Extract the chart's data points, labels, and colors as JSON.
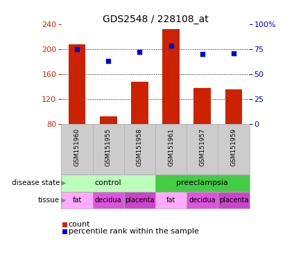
{
  "title": "GDS2548 / 228108_at",
  "samples": [
    "GSM151960",
    "GSM151955",
    "GSM151958",
    "GSM151961",
    "GSM151957",
    "GSM151959"
  ],
  "counts": [
    207,
    93,
    148,
    232,
    138,
    136
  ],
  "percentiles": [
    75,
    63,
    72,
    78,
    70,
    71
  ],
  "ylim_left": [
    80,
    240
  ],
  "ylim_right": [
    0,
    100
  ],
  "yticks_left": [
    80,
    120,
    160,
    200,
    240
  ],
  "yticks_right": [
    0,
    25,
    50,
    75,
    100
  ],
  "bar_color": "#cc2200",
  "dot_color": "#0000cc",
  "bar_bottom": 80,
  "disease_groups": [
    {
      "name": "control",
      "start": 0,
      "end": 3,
      "color": "#bbffbb"
    },
    {
      "name": "preeclampsia",
      "start": 3,
      "end": 6,
      "color": "#44cc44"
    }
  ],
  "tissue": [
    "fat",
    "decidua",
    "placenta",
    "fat",
    "decidua",
    "placenta"
  ],
  "tissue_colors": {
    "fat": "#ffaaff",
    "decidua": "#dd55dd",
    "placenta": "#cc44cc"
  },
  "background_color": "#ffffff",
  "tick_area_color": "#cccccc",
  "legend_items": [
    {
      "label": "count",
      "color": "#cc2200"
    },
    {
      "label": "percentile rank within the sample",
      "color": "#0000cc"
    }
  ]
}
